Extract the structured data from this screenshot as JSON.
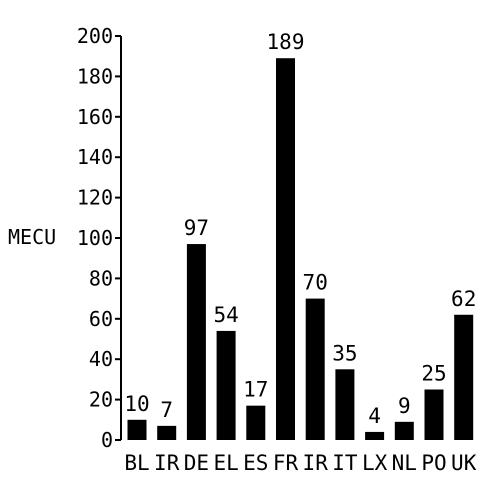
{
  "chart_data": {
    "type": "bar",
    "categories": [
      "BL",
      "IR",
      "DE",
      "EL",
      "ES",
      "FR",
      "IR",
      "IT",
      "LX",
      "NL",
      "PO",
      "UK"
    ],
    "values": [
      10,
      7,
      97,
      54,
      17,
      189,
      70,
      35,
      4,
      9,
      25,
      62
    ],
    "data_labels": [
      "10",
      "7",
      "97",
      "54",
      "17",
      "189",
      "70",
      "35",
      "4",
      "9",
      "25",
      "62"
    ],
    "ylabel": "MECU",
    "xlabel": "",
    "title": "",
    "ylim": [
      0,
      200
    ],
    "yticks": [
      0,
      20,
      40,
      60,
      80,
      100,
      120,
      140,
      160,
      180,
      200
    ],
    "grid": false,
    "bar_color": "#000000"
  }
}
